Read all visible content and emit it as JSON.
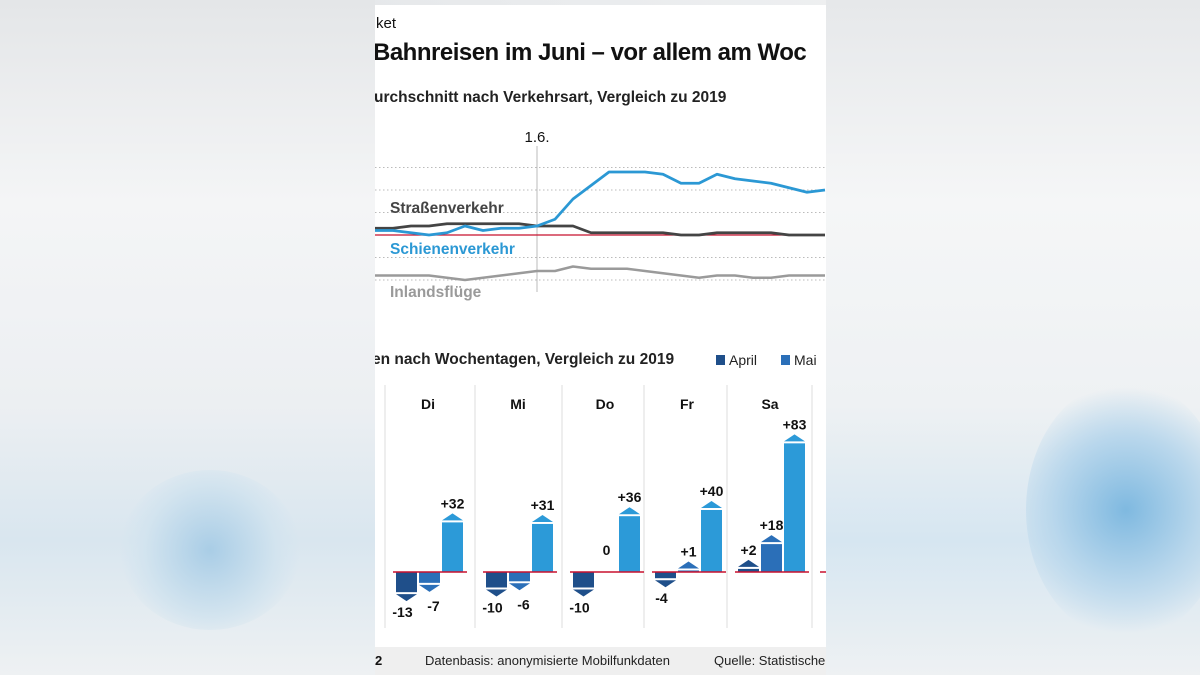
{
  "header": {
    "kicker": "ket",
    "title": "Bahnreisen im Juni – vor allem am Woc",
    "subtitle_top": "urchschnitt nach Verkehrsart, Vergleich zu 2019",
    "subtitle_bottom": "en nach Wochentagen, Vergleich zu 2019"
  },
  "footer": {
    "left": "2",
    "basis": "Datenbasis: anonymisierte Mobilfunkdaten",
    "source": "Quelle: Statistische"
  },
  "colors": {
    "road": "#444444",
    "rail": "#2b98d4",
    "flights": "#9a9a9a",
    "baseline": "#c8102e",
    "april": "#1f4f8a",
    "mai": "#2b6fb8",
    "third": "#2c9ad8"
  },
  "chart_data": [
    {
      "type": "line",
      "marker": {
        "label": "1.6.",
        "index": 9
      },
      "grid": true,
      "baseline": 0,
      "series": [
        {
          "name": "Straßenverkehr",
          "values": [
            3,
            3,
            4,
            4,
            5,
            5,
            5,
            5,
            5,
            4,
            4,
            4,
            1,
            1,
            1,
            1,
            1,
            0,
            0,
            1,
            1,
            1,
            1,
            0,
            0,
            0
          ]
        },
        {
          "name": "Schienenverkehr",
          "values": [
            2,
            2,
            1,
            0,
            1,
            4,
            2,
            3,
            3,
            4,
            7,
            16,
            22,
            28,
            28,
            28,
            27,
            23,
            23,
            27,
            25,
            24,
            23,
            21,
            19,
            20
          ]
        },
        {
          "name": "Inlandsflüge",
          "values": [
            -18,
            -18,
            -18,
            -18,
            -19,
            -20,
            -19,
            -18,
            -17,
            -16,
            -16,
            -14,
            -15,
            -15,
            -15,
            -16,
            -17,
            -18,
            -19,
            -18,
            -18,
            -19,
            -19,
            -18,
            -18,
            -18
          ]
        }
      ]
    },
    {
      "type": "bar",
      "legend": [
        {
          "name": "April"
        },
        {
          "name": "Mai"
        }
      ],
      "legend_position": "top-right",
      "categories": [
        "Di",
        "Mi",
        "Do",
        "Fr",
        "Sa"
      ],
      "series": [
        {
          "name": "April",
          "values": [
            -13,
            -10,
            -10,
            -4,
            2
          ],
          "labels": [
            "-13",
            "-10",
            "-10",
            "-4",
            "+2"
          ]
        },
        {
          "name": "Mai",
          "values": [
            -7,
            -6,
            0,
            1,
            18
          ],
          "labels": [
            "-7",
            "-6",
            "0",
            "+1",
            "+18"
          ]
        },
        {
          "values": [
            32,
            31,
            36,
            40,
            83
          ],
          "labels": [
            "+32",
            "+31",
            "+36",
            "+40",
            "+83"
          ]
        }
      ]
    }
  ]
}
